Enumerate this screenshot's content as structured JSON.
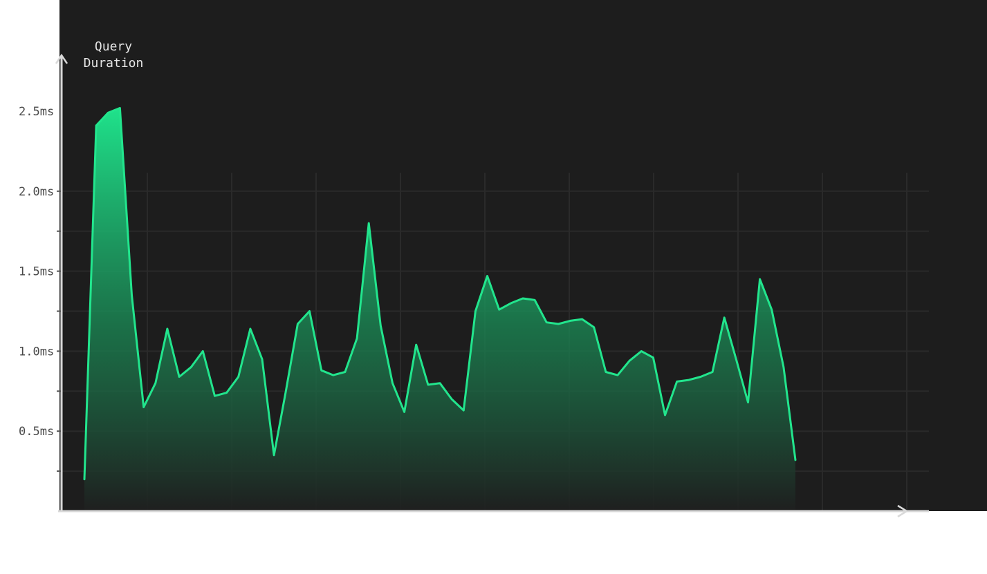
{
  "chart_data": {
    "type": "area",
    "ylabel": "Query Duration",
    "xlabel": "",
    "title": "",
    "y_unit": "ms",
    "yticks": [
      "0.5ms",
      "1.0ms",
      "1.5ms",
      "2.0ms",
      "2.5ms"
    ],
    "ylim": [
      0,
      2.85
    ],
    "grid": true,
    "colors": {
      "line": "#22e58d",
      "fill_top": "#1fe28b",
      "fill_bottom": "#1f1f1f",
      "background": "#1d1d1d",
      "axis": "#d9d9d9",
      "grid": "#2a2a2a",
      "tick_label": "#4a4a4a"
    },
    "series": [
      {
        "values": [
          0.2,
          2.41,
          2.49,
          2.52,
          1.35,
          0.65,
          0.8,
          1.14,
          0.84,
          0.9,
          1.0,
          0.72,
          0.74,
          0.84,
          1.14,
          0.95,
          0.35,
          0.75,
          1.17,
          1.25,
          0.88,
          0.85,
          0.87,
          1.08,
          1.8,
          1.16,
          0.8,
          0.62,
          1.04,
          0.79,
          0.8,
          0.7,
          0.63,
          1.25,
          1.47,
          1.26,
          1.3,
          1.33,
          1.32,
          1.18,
          1.17,
          1.19,
          1.2,
          1.15,
          0.87,
          0.85,
          0.94,
          1.0,
          0.96,
          0.6,
          0.81,
          0.82,
          0.84,
          0.87,
          1.21,
          0.95,
          0.68,
          1.45,
          1.26,
          0.9,
          0.32
        ]
      }
    ]
  }
}
